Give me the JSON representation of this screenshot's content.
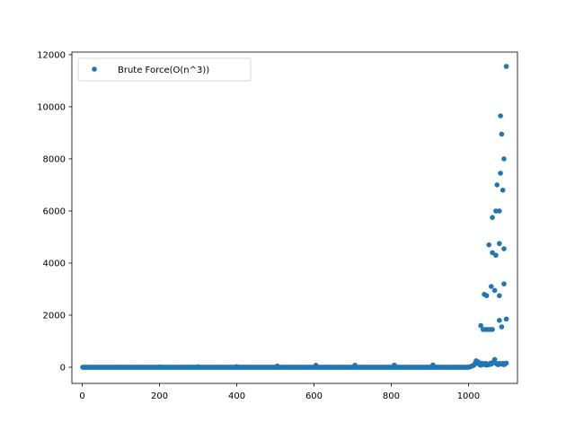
{
  "chart_data": {
    "type": "scatter",
    "title": "",
    "xlabel": "",
    "ylabel": "",
    "xlim": [
      -27,
      1127
    ],
    "ylim": [
      -620,
      12100
    ],
    "xticks": [
      0,
      200,
      400,
      600,
      800,
      1000
    ],
    "yticks": [
      0,
      2000,
      4000,
      6000,
      8000,
      10000,
      12000
    ],
    "xtick_labels": [
      "0",
      "200",
      "400",
      "600",
      "800",
      "1000"
    ],
    "ytick_labels": [
      "0",
      "2000",
      "4000",
      "6000",
      "8000",
      "10000",
      "12000"
    ],
    "grid": false,
    "legend_position": "upper-left",
    "series": [
      {
        "name": "Brute Force(O(n^3))",
        "color": "#1f77b4",
        "marker": "circle",
        "baseline": {
          "x_range": [
            1,
            1000
          ],
          "step": 2,
          "y": 0,
          "bumps": [
            {
              "x": 100,
              "y": 5
            },
            {
              "x": 200,
              "y": 15
            },
            {
              "x": 300,
              "y": 20
            },
            {
              "x": 400,
              "y": 25
            },
            {
              "x": 505,
              "y": 50
            },
            {
              "x": 605,
              "y": 75
            },
            {
              "x": 706,
              "y": 80
            },
            {
              "x": 808,
              "y": 85
            },
            {
              "x": 908,
              "y": 90
            }
          ]
        },
        "points": [
          [
            1002,
            10
          ],
          [
            1005,
            20
          ],
          [
            1008,
            40
          ],
          [
            1011,
            60
          ],
          [
            1014,
            80
          ],
          [
            1017,
            150
          ],
          [
            1020,
            250
          ],
          [
            1023,
            150
          ],
          [
            1026,
            200
          ],
          [
            1029,
            100
          ],
          [
            1032,
            80
          ],
          [
            1035,
            150
          ],
          [
            1038,
            120
          ],
          [
            1041,
            100
          ],
          [
            1044,
            150
          ],
          [
            1047,
            80
          ],
          [
            1050,
            120
          ],
          [
            1053,
            100
          ],
          [
            1056,
            150
          ],
          [
            1059,
            120
          ],
          [
            1062,
            180
          ],
          [
            1065,
            200
          ],
          [
            1068,
            300
          ],
          [
            1071,
            150
          ],
          [
            1074,
            120
          ],
          [
            1077,
            100
          ],
          [
            1080,
            150
          ],
          [
            1083,
            130
          ],
          [
            1086,
            120
          ],
          [
            1089,
            150
          ],
          [
            1092,
            100
          ],
          [
            1095,
            130
          ],
          [
            1098,
            160
          ],
          [
            1032,
            1600
          ],
          [
            1038,
            1450
          ],
          [
            1044,
            1450
          ],
          [
            1050,
            1450
          ],
          [
            1056,
            1450
          ],
          [
            1062,
            1450
          ],
          [
            1041,
            2800
          ],
          [
            1047,
            2750
          ],
          [
            1059,
            3100
          ],
          [
            1068,
            2950
          ],
          [
            1080,
            2750
          ],
          [
            1092,
            3200
          ],
          [
            1053,
            4700
          ],
          [
            1062,
            4400
          ],
          [
            1071,
            4300
          ],
          [
            1080,
            4750
          ],
          [
            1092,
            4550
          ],
          [
            1062,
            5750
          ],
          [
            1071,
            6000
          ],
          [
            1080,
            6000
          ],
          [
            1089,
            6800
          ],
          [
            1074,
            7000
          ],
          [
            1083,
            7450
          ],
          [
            1092,
            8000
          ],
          [
            1086,
            8950
          ],
          [
            1083,
            9650
          ],
          [
            1098,
            11550
          ],
          [
            1086,
            1550
          ],
          [
            1080,
            1800
          ],
          [
            1098,
            1850
          ]
        ]
      }
    ]
  }
}
